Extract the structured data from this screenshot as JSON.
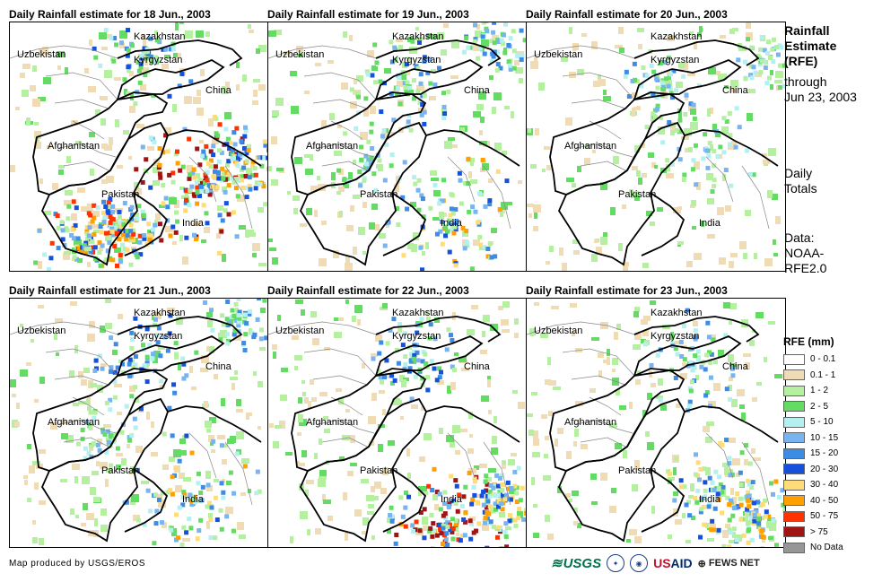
{
  "panels": [
    {
      "title": "Daily Rainfall estimate for 18 Jun., 2003",
      "rain": "heavy-south"
    },
    {
      "title": "Daily Rainfall estimate for 19 Jun., 2003",
      "rain": "moderate"
    },
    {
      "title": "Daily Rainfall estimate for 20 Jun., 2003",
      "rain": "light"
    },
    {
      "title": "Daily Rainfall estimate for 21 Jun., 2003",
      "rain": "moderate"
    },
    {
      "title": "Daily Rainfall estimate for 22 Jun., 2003",
      "rain": "heavy-india"
    },
    {
      "title": "Daily Rainfall estimate for 23 Jun., 2003",
      "rain": "moderate-east"
    }
  ],
  "country_labels": {
    "kazakhstan": "Kazakhstan",
    "uzbekistan": "Uzbekistan",
    "kyrgyzstan": "Kyrgyzstan",
    "china": "China",
    "afghanistan": "Afghanistan",
    "pakistan": "Pakistan",
    "india": "India"
  },
  "side": {
    "title_line1": "Rainfall",
    "title_line2": "Estimate",
    "title_line3": "(RFE)",
    "through": "through",
    "date": "Jun 23, 2003",
    "daily1": "Daily",
    "daily2": "Totals",
    "data1": "Data:",
    "data2": "NOAA-",
    "data3": "RFE2.0"
  },
  "legend": {
    "title": "RFE (mm)",
    "items": [
      {
        "label": "0 - 0.1",
        "color": "#ffffff"
      },
      {
        "label": "0.1 - 1",
        "color": "#f0dcb4"
      },
      {
        "label": "1 - 2",
        "color": "#b4f0a0"
      },
      {
        "label": "2 - 5",
        "color": "#64dc64"
      },
      {
        "label": "5 - 10",
        "color": "#b4f0f0"
      },
      {
        "label": "10 - 15",
        "color": "#78b4f0"
      },
      {
        "label": "15 - 20",
        "color": "#3c8ce6"
      },
      {
        "label": "20 - 30",
        "color": "#1450dc"
      },
      {
        "label": "30 - 40",
        "color": "#ffdc78"
      },
      {
        "label": "40 - 50",
        "color": "#ffa000"
      },
      {
        "label": "50 - 75",
        "color": "#ff3200"
      },
      {
        "label": "> 75",
        "color": "#a01414"
      },
      {
        "label": "No Data",
        "color": "#969696"
      }
    ]
  },
  "footer": {
    "credit": "Map produced by USGS/EROS",
    "usgs": "USGS",
    "usaid_us": "US",
    "usaid_aid": "AID",
    "fews": "FEWS NET"
  }
}
